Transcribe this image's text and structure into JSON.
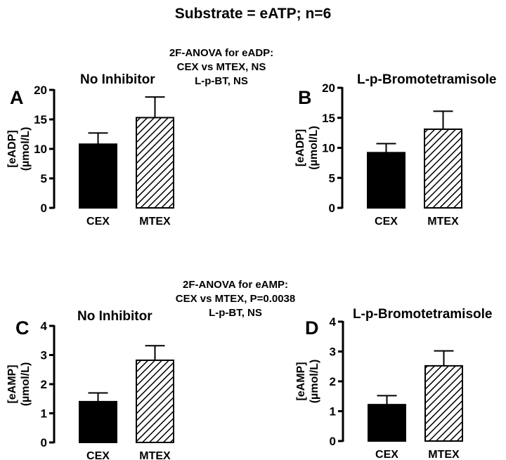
{
  "page": {
    "title": "Substrate = eATP; n=6",
    "anova_top": [
      "2F-ANOVA for eADP:",
      "CEX vs MTEX, NS",
      "L-p-BT, NS"
    ],
    "anova_bottom": [
      "2F-ANOVA for eAMP:",
      "CEX vs MTEX, P=0.0038",
      "L-p-BT, NS"
    ]
  },
  "chart_data": [
    {
      "type": "bar",
      "panel": "A",
      "title": "No Inhibitor",
      "ylabel": [
        "[eADP]",
        "(µmol/L)"
      ],
      "categories": [
        "CEX",
        "MTEX"
      ],
      "values": [
        10.8,
        15.3
      ],
      "errors": [
        1.9,
        3.5
      ],
      "fills": [
        "solid",
        "hatched"
      ],
      "ylim": [
        0,
        20
      ],
      "yticks": [
        0,
        5,
        10,
        15,
        20
      ]
    },
    {
      "type": "bar",
      "panel": "B",
      "title": "L-p-Bromotetramisole",
      "ylabel": [
        "[eADP]",
        "(µmol/L)"
      ],
      "categories": [
        "CEX",
        "MTEX"
      ],
      "values": [
        9.2,
        13.1
      ],
      "errors": [
        1.5,
        3.0
      ],
      "fills": [
        "solid",
        "hatched"
      ],
      "ylim": [
        0,
        20
      ],
      "yticks": [
        0,
        5,
        10,
        15,
        20
      ]
    },
    {
      "type": "bar",
      "panel": "C",
      "title": "No Inhibitor",
      "ylabel": [
        "[eAMP]",
        "(µmol/L)"
      ],
      "categories": [
        "CEX",
        "MTEX"
      ],
      "values": [
        1.4,
        2.82
      ],
      "errors": [
        0.3,
        0.5
      ],
      "fills": [
        "solid",
        "hatched"
      ],
      "ylim": [
        0,
        4
      ],
      "yticks": [
        0,
        1,
        2,
        3,
        4
      ]
    },
    {
      "type": "bar",
      "panel": "D",
      "title": "L-p-Bromotetramisole",
      "ylabel": [
        "[eAMP]",
        "(µmol/L)"
      ],
      "categories": [
        "CEX",
        "MTEX"
      ],
      "values": [
        1.22,
        2.52
      ],
      "errors": [
        0.3,
        0.5
      ],
      "fills": [
        "solid",
        "hatched"
      ],
      "ylim": [
        0,
        4
      ],
      "yticks": [
        0,
        1,
        2,
        3,
        4
      ]
    }
  ]
}
